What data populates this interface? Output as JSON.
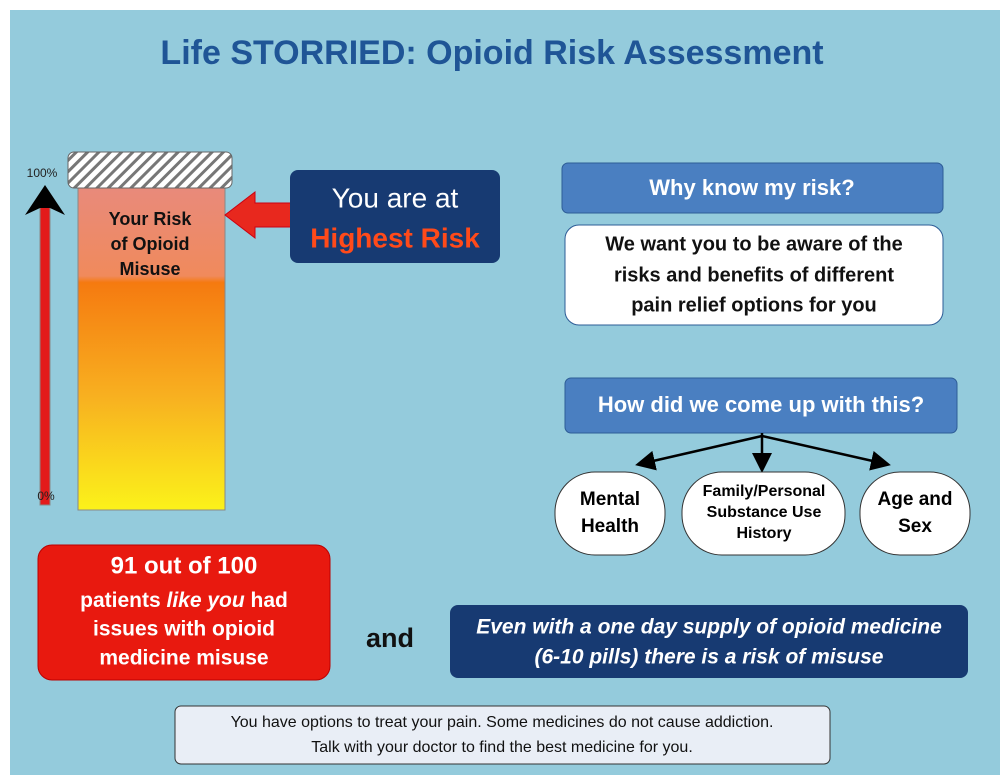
{
  "title": "Life STORRIED: Opioid Risk Assessment",
  "meter": {
    "top_label": "100%",
    "bottom_label": "0%",
    "label_lines": [
      "Your Risk",
      "of Opioid",
      "Misuse"
    ]
  },
  "callout": {
    "line1": "You are at",
    "line2": "Highest Risk"
  },
  "why": {
    "heading": "Why know my risk?",
    "lines": [
      "We want you to be aware of the",
      "risks and benefits of different",
      "pain relief options for you"
    ]
  },
  "how": {
    "heading": "How did we come up with this?",
    "factors": [
      [
        "Mental",
        "Health"
      ],
      [
        "Family/Personal",
        "Substance Use",
        "History"
      ],
      [
        "Age and",
        "Sex"
      ]
    ]
  },
  "stat": {
    "headline": "91 out of 100",
    "line1_start": "patients ",
    "line1_italic": "like you",
    "line1_end": " had",
    "line2": "issues with opioid",
    "line3": "medicine misuse"
  },
  "connector": "and",
  "supply": {
    "lines": [
      "Even with a one day supply of opioid medicine",
      "(6-10 pills) there is a risk of misuse"
    ]
  },
  "footer": {
    "lines": [
      "You have options to treat your pain. Some medicines do not cause addiction.",
      "Talk with your doctor to find the best medicine for you."
    ]
  }
}
